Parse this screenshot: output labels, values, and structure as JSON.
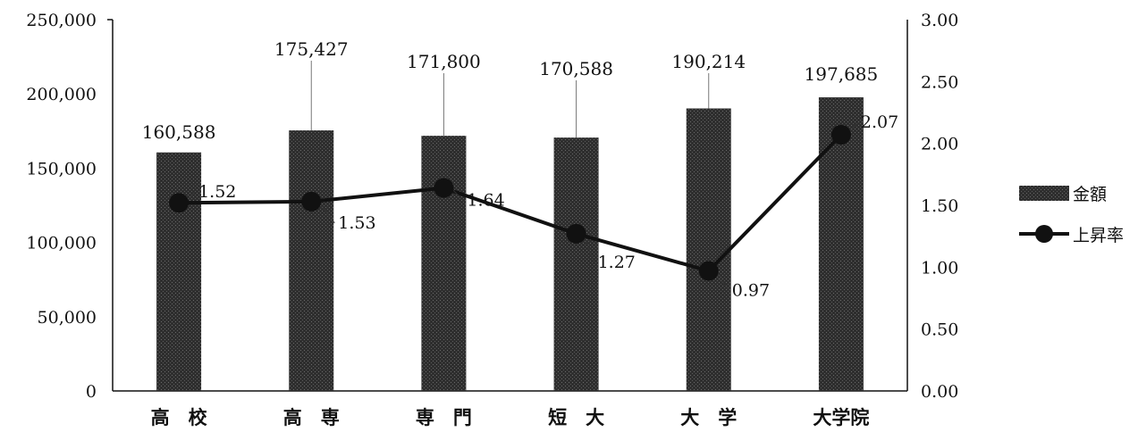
{
  "chart_data": {
    "type": "bar",
    "categories": [
      "高　校",
      "高　専",
      "専　門",
      "短　大",
      "大　学",
      "大学院"
    ],
    "series": [
      {
        "name": "金額",
        "type": "bar",
        "axis": "left",
        "values": [
          160588,
          175427,
          171800,
          170588,
          190214,
          197685
        ],
        "labels": [
          "160,588",
          "175,427",
          "171,800",
          "170,588",
          "190,214",
          "197,685"
        ]
      },
      {
        "name": "上昇率",
        "type": "line",
        "axis": "right",
        "values": [
          1.52,
          1.53,
          1.64,
          1.27,
          0.97,
          2.07
        ],
        "labels": [
          "1.52",
          "1.53",
          "1.64",
          "1.27",
          "0.97",
          "2.07"
        ]
      }
    ],
    "left_axis": {
      "ylim": [
        0,
        250000
      ],
      "ticks": [
        "0",
        "50,000",
        "100,000",
        "150,000",
        "200,000",
        "250,000"
      ]
    },
    "right_axis": {
      "ylim": [
        0,
        3.0
      ],
      "ticks": [
        "0.00",
        "0.50",
        "1.00",
        "1.50",
        "2.00",
        "2.50",
        "3.00"
      ]
    },
    "grid": false,
    "legend": {
      "position": "right",
      "items": [
        "金額",
        "上昇率"
      ]
    },
    "colors": {
      "bar": "#2b2b2b",
      "line": "#111111",
      "axis": "#111111",
      "background": "#ffffff"
    }
  }
}
